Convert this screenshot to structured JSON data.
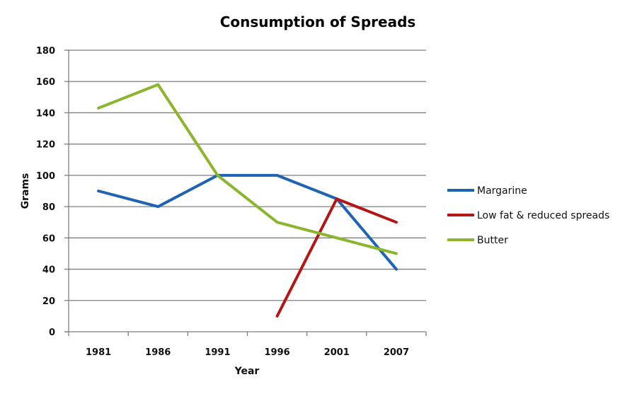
{
  "chart_data": {
    "type": "line",
    "title": "Consumption of Spreads",
    "xlabel": "Year",
    "ylabel": "Grams",
    "categories": [
      "1981",
      "1986",
      "1991",
      "1996",
      "2001",
      "2007"
    ],
    "ylim": [
      0,
      180
    ],
    "yticks": [
      0,
      20,
      40,
      60,
      80,
      100,
      120,
      140,
      160,
      180
    ],
    "grid": true,
    "legend_position": "right",
    "series": [
      {
        "name": "Margarine",
        "color": "#1f63b3",
        "values": [
          90,
          80,
          100,
          100,
          85,
          40
        ]
      },
      {
        "name": "Low fat & reduced spreads",
        "color": "#b51515",
        "values": [
          null,
          null,
          null,
          10,
          85,
          70
        ]
      },
      {
        "name": "Butter",
        "color": "#8ab52c",
        "values": [
          143,
          158,
          100,
          70,
          60,
          50
        ]
      }
    ]
  }
}
